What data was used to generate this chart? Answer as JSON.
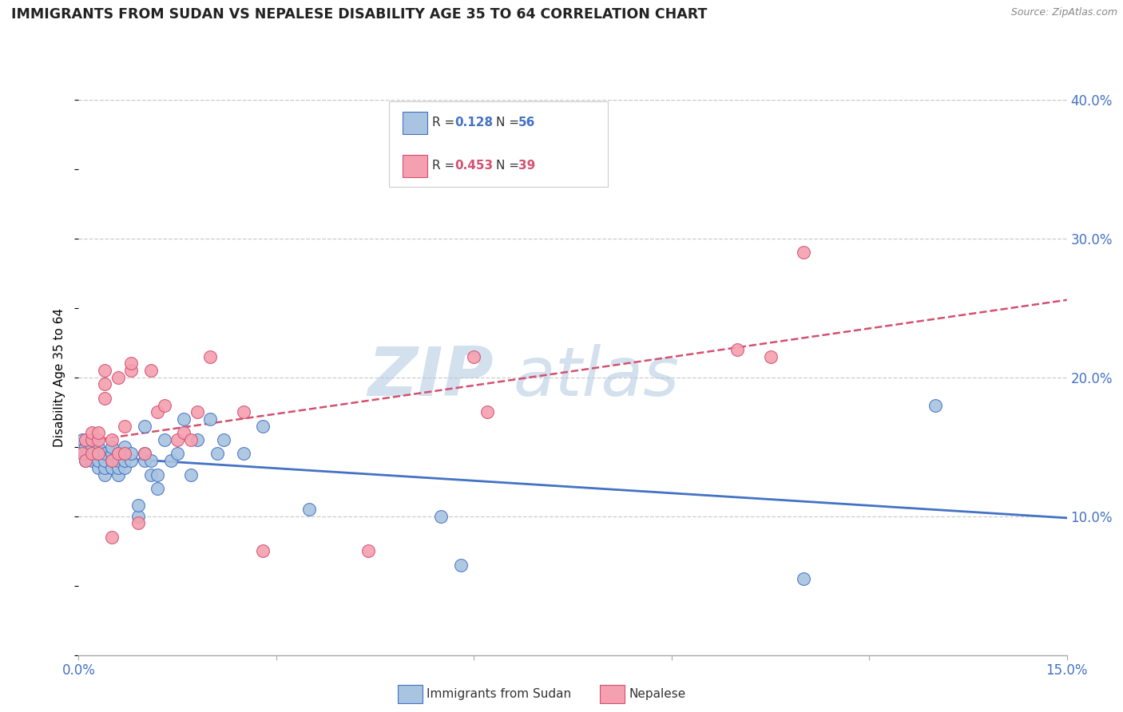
{
  "title": "IMMIGRANTS FROM SUDAN VS NEPALESE DISABILITY AGE 35 TO 64 CORRELATION CHART",
  "source": "Source: ZipAtlas.com",
  "ylabel": "Disability Age 35 to 64",
  "legend_label1": "Immigrants from Sudan",
  "legend_label2": "Nepalese",
  "r1": "0.128",
  "n1": "56",
  "r2": "0.453",
  "n2": "39",
  "color1": "#a8c4e0",
  "color2": "#f4a0b0",
  "line_color1": "#4472c4",
  "line_color2": "#d45070",
  "watermark_zip": "ZIP",
  "watermark_atlas": "atlas",
  "xlim": [
    0.0,
    0.15
  ],
  "ylim": [
    0.0,
    0.4
  ],
  "sudan_x": [
    0.0005,
    0.001,
    0.001,
    0.001,
    0.001,
    0.002,
    0.002,
    0.002,
    0.002,
    0.003,
    0.003,
    0.003,
    0.003,
    0.004,
    0.004,
    0.004,
    0.004,
    0.005,
    0.005,
    0.005,
    0.005,
    0.006,
    0.006,
    0.006,
    0.006,
    0.007,
    0.007,
    0.007,
    0.007,
    0.008,
    0.008,
    0.009,
    0.009,
    0.01,
    0.01,
    0.01,
    0.011,
    0.011,
    0.012,
    0.012,
    0.013,
    0.014,
    0.015,
    0.016,
    0.017,
    0.018,
    0.02,
    0.021,
    0.022,
    0.025,
    0.028,
    0.035,
    0.055,
    0.058,
    0.11,
    0.13
  ],
  "sudan_y": [
    0.155,
    0.14,
    0.145,
    0.15,
    0.155,
    0.14,
    0.145,
    0.15,
    0.155,
    0.135,
    0.14,
    0.145,
    0.15,
    0.13,
    0.135,
    0.14,
    0.145,
    0.135,
    0.14,
    0.145,
    0.15,
    0.13,
    0.135,
    0.14,
    0.145,
    0.135,
    0.14,
    0.145,
    0.15,
    0.14,
    0.145,
    0.1,
    0.108,
    0.165,
    0.14,
    0.145,
    0.13,
    0.14,
    0.12,
    0.13,
    0.155,
    0.14,
    0.145,
    0.17,
    0.13,
    0.155,
    0.17,
    0.145,
    0.155,
    0.145,
    0.165,
    0.105,
    0.1,
    0.065,
    0.055,
    0.18
  ],
  "nepal_x": [
    0.0005,
    0.001,
    0.001,
    0.002,
    0.002,
    0.002,
    0.003,
    0.003,
    0.003,
    0.004,
    0.004,
    0.004,
    0.005,
    0.005,
    0.005,
    0.006,
    0.006,
    0.007,
    0.007,
    0.008,
    0.008,
    0.009,
    0.01,
    0.011,
    0.012,
    0.013,
    0.015,
    0.016,
    0.017,
    0.018,
    0.02,
    0.025,
    0.028,
    0.044,
    0.06,
    0.062,
    0.1,
    0.105,
    0.11
  ],
  "nepal_y": [
    0.145,
    0.14,
    0.155,
    0.145,
    0.155,
    0.16,
    0.145,
    0.155,
    0.16,
    0.185,
    0.195,
    0.205,
    0.14,
    0.155,
    0.085,
    0.145,
    0.2,
    0.145,
    0.165,
    0.205,
    0.21,
    0.095,
    0.145,
    0.205,
    0.175,
    0.18,
    0.155,
    0.16,
    0.155,
    0.175,
    0.215,
    0.175,
    0.075,
    0.075,
    0.215,
    0.175,
    0.22,
    0.215,
    0.29
  ]
}
